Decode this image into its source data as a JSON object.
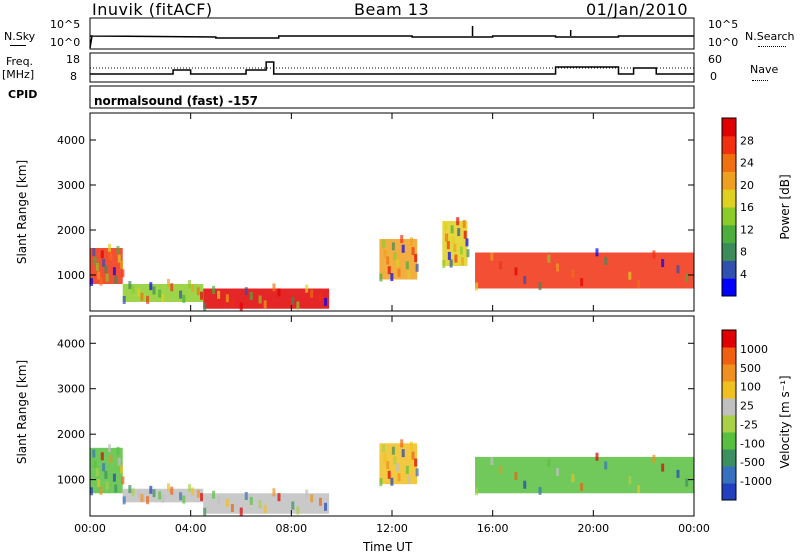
{
  "header": {
    "station": "Inuvik (fitACF)",
    "beam": "Beam 13",
    "date": "01/Jan/2010"
  },
  "status_panels": {
    "nsky_label": "N.Sky",
    "nsearch_label": "N.Search",
    "freq_label_1": "Freq.",
    "freq_label_2": "[MHz]",
    "nave_label": "Nave",
    "cpid_label": "CPID",
    "cpid_text": "normalsound (fast) -157",
    "nsky_ticks": [
      "10^5",
      "10^0"
    ],
    "nsearch_ticks": [
      "10^5",
      "10^0"
    ],
    "freq_ticks": [
      "18",
      "8"
    ],
    "nave_ticks": [
      "60",
      "0"
    ]
  },
  "colorbars": {
    "power": {
      "label": "Power [dB]",
      "ticks": [
        "28",
        "24",
        "20",
        "16",
        "12",
        "8",
        "4"
      ],
      "colors": [
        "#0000ff",
        "#3050b0",
        "#3c8c5a",
        "#4cae3c",
        "#8ccc2a",
        "#e0d020",
        "#f0a020",
        "#f07010",
        "#f03010",
        "#e00000"
      ]
    },
    "velocity": {
      "label": "Velocity [m s⁻¹]",
      "ticks": [
        "1000",
        "500",
        "100",
        "25",
        "-25",
        "-100",
        "-500",
        "-1000"
      ],
      "colors": [
        "#2040c0",
        "#3870c0",
        "#3c9060",
        "#58c040",
        "#a8d048",
        "#c0c0c0",
        "#f0c020",
        "#f09020",
        "#f06010",
        "#e00000"
      ]
    }
  },
  "chart_data": [
    {
      "type": "heatmap",
      "name": "power",
      "ylabel": "Slant Range [km]",
      "yticks": [
        1000,
        2000,
        3000,
        4000
      ],
      "ylim": [
        200,
        4600
      ],
      "xlim": [
        0,
        24
      ],
      "xticks": [
        "00:00",
        "04:00",
        "08:00",
        "12:00",
        "16:00",
        "20:00",
        "00:00"
      ],
      "colorbar_range": [
        0,
        30
      ],
      "regions": [
        {
          "t0": 0.0,
          "t1": 1.3,
          "r0": 800,
          "r1": 1600,
          "level": 26
        },
        {
          "t0": 1.3,
          "t1": 4.5,
          "r0": 400,
          "r1": 800,
          "level": 14
        },
        {
          "t0": 4.5,
          "t1": 9.5,
          "r0": 250,
          "r1": 700,
          "level": 27
        },
        {
          "t0": 11.5,
          "t1": 13.0,
          "r0": 900,
          "r1": 1800,
          "level": 18
        },
        {
          "t0": 14.0,
          "t1": 15.0,
          "r0": 1200,
          "r1": 2200,
          "level": 16
        },
        {
          "t0": 15.3,
          "t1": 24.0,
          "r0": 700,
          "r1": 1500,
          "level": 26
        }
      ]
    },
    {
      "type": "heatmap",
      "name": "velocity",
      "ylabel": "Slant Range [km]",
      "yticks": [
        1000,
        2000,
        3000,
        4000
      ],
      "ylim": [
        200,
        4600
      ],
      "xlim": [
        0,
        24
      ],
      "xticks": [
        "00:00",
        "04:00",
        "08:00",
        "12:00",
        "16:00",
        "20:00",
        "00:00"
      ],
      "xlabel": "Time UT",
      "colorbar_range": [
        -1000,
        1000
      ],
      "regions": [
        {
          "t0": 0.0,
          "t1": 1.3,
          "r0": 700,
          "r1": 1700,
          "level": -300
        },
        {
          "t0": 1.3,
          "t1": 4.5,
          "r0": 500,
          "r1": 800,
          "level": 60
        },
        {
          "t0": 4.5,
          "t1": 9.5,
          "r0": 250,
          "r1": 700,
          "level": 40
        },
        {
          "t0": 11.5,
          "t1": 13.0,
          "r0": 900,
          "r1": 1800,
          "level": 300
        },
        {
          "t0": 15.3,
          "t1": 24.0,
          "r0": 700,
          "r1": 1500,
          "level": -250
        }
      ]
    }
  ]
}
